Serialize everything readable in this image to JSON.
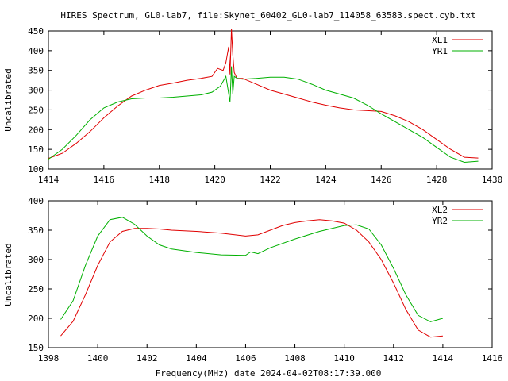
{
  "title": "HIRES Spectrum, GL0-lab7, file:Skynet_60402_GL0-lab7_114058_63583.spect.cyb.txt",
  "colors": {
    "red": "#e00000",
    "green": "#00b000",
    "axis": "#000000"
  },
  "chart_data": [
    {
      "type": "line",
      "xlabel": "",
      "ylabel": "Uncalibrated",
      "xlim": [
        1414,
        1430
      ],
      "ylim": [
        100,
        450
      ],
      "xticks": [
        1414,
        1416,
        1418,
        1420,
        1422,
        1424,
        1426,
        1428,
        1430
      ],
      "yticks": [
        100,
        150,
        200,
        250,
        300,
        350,
        400,
        450
      ],
      "legend": "top-right",
      "series": [
        {
          "name": "XL1",
          "color": "red",
          "x": [
            1414.0,
            1414.5,
            1415.0,
            1415.5,
            1416.0,
            1416.5,
            1417.0,
            1417.5,
            1418.0,
            1418.5,
            1419.0,
            1419.5,
            1419.9,
            1420.1,
            1420.3,
            1420.4,
            1420.5,
            1420.55,
            1420.6,
            1420.65,
            1420.7,
            1420.8,
            1421.0,
            1421.5,
            1422.0,
            1422.5,
            1423.0,
            1423.5,
            1424.0,
            1424.5,
            1425.0,
            1425.5,
            1426.0,
            1426.5,
            1427.0,
            1427.5,
            1428.0,
            1428.5,
            1429.0,
            1429.5
          ],
          "values": [
            127,
            140,
            165,
            195,
            230,
            260,
            285,
            300,
            312,
            318,
            325,
            330,
            335,
            355,
            350,
            370,
            410,
            340,
            455,
            390,
            345,
            330,
            330,
            315,
            300,
            290,
            280,
            270,
            262,
            255,
            250,
            248,
            246,
            235,
            220,
            200,
            175,
            150,
            130,
            128
          ]
        },
        {
          "name": "YR1",
          "color": "green",
          "x": [
            1414.0,
            1414.5,
            1415.0,
            1415.5,
            1416.0,
            1416.5,
            1417.0,
            1417.5,
            1418.0,
            1418.5,
            1419.0,
            1419.5,
            1419.9,
            1420.2,
            1420.4,
            1420.55,
            1420.6,
            1420.65,
            1420.7,
            1420.8,
            1421.0,
            1421.5,
            1422.0,
            1422.5,
            1423.0,
            1423.5,
            1424.0,
            1424.5,
            1425.0,
            1425.5,
            1426.0,
            1426.5,
            1427.0,
            1427.5,
            1428.0,
            1428.5,
            1429.0,
            1429.5
          ],
          "values": [
            125,
            150,
            185,
            225,
            255,
            270,
            278,
            280,
            280,
            282,
            285,
            288,
            295,
            310,
            335,
            270,
            360,
            290,
            335,
            330,
            328,
            330,
            333,
            333,
            328,
            315,
            300,
            290,
            280,
            262,
            240,
            220,
            200,
            180,
            155,
            130,
            117,
            120
          ]
        }
      ]
    },
    {
      "type": "line",
      "xlabel": "Frequency(MHz) date 2024-04-02T08:17:39.000",
      "ylabel": "Uncalibrated",
      "xlim": [
        1398,
        1416
      ],
      "ylim": [
        150,
        400
      ],
      "xticks": [
        1398,
        1400,
        1402,
        1404,
        1406,
        1408,
        1410,
        1412,
        1414,
        1416
      ],
      "yticks": [
        150,
        200,
        250,
        300,
        350,
        400
      ],
      "legend": "top-right",
      "series": [
        {
          "name": "XL2",
          "color": "red",
          "x": [
            1398.5,
            1399.0,
            1399.5,
            1400.0,
            1400.5,
            1401.0,
            1401.5,
            1402.0,
            1402.5,
            1403.0,
            1404.0,
            1405.0,
            1406.0,
            1406.5,
            1407.0,
            1407.5,
            1408.0,
            1408.5,
            1409.0,
            1409.5,
            1410.0,
            1410.5,
            1411.0,
            1411.5,
            1412.0,
            1412.5,
            1413.0,
            1413.5,
            1414.0
          ],
          "values": [
            170,
            195,
            240,
            290,
            330,
            348,
            353,
            353,
            352,
            350,
            348,
            345,
            340,
            342,
            350,
            358,
            363,
            366,
            368,
            366,
            362,
            350,
            330,
            300,
            260,
            215,
            180,
            168,
            170
          ]
        },
        {
          "name": "YR2",
          "color": "green",
          "x": [
            1398.5,
            1399.0,
            1399.5,
            1400.0,
            1400.5,
            1401.0,
            1401.5,
            1402.0,
            1402.5,
            1403.0,
            1404.0,
            1405.0,
            1406.0,
            1406.2,
            1406.5,
            1407.0,
            1408.0,
            1409.0,
            1410.0,
            1410.5,
            1411.0,
            1411.5,
            1412.0,
            1412.5,
            1413.0,
            1413.5,
            1414.0
          ],
          "values": [
            198,
            230,
            290,
            340,
            368,
            372,
            360,
            340,
            325,
            318,
            312,
            308,
            307,
            313,
            310,
            320,
            335,
            348,
            358,
            359,
            352,
            325,
            285,
            240,
            205,
            194,
            200
          ]
        }
      ]
    }
  ]
}
